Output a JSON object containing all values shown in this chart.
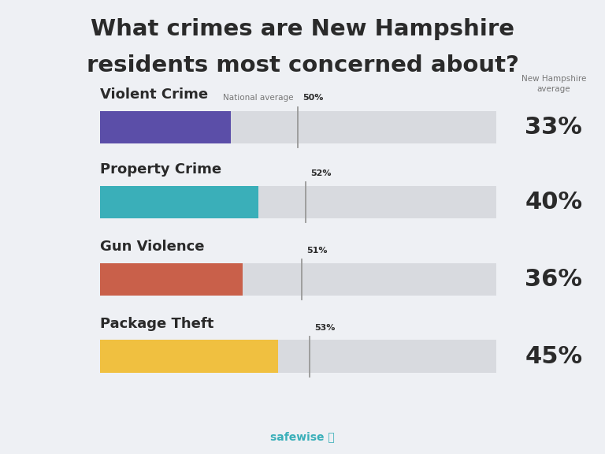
{
  "title_line1": "What crimes are New Hampshire",
  "title_line2": "residents most concerned about?",
  "background_color": "#eef0f4",
  "categories": [
    "Violent Crime",
    "Property Crime",
    "Gun Violence",
    "Package Theft"
  ],
  "state_values": [
    33,
    40,
    36,
    45
  ],
  "national_values": [
    50,
    52,
    51,
    53
  ],
  "bar_colors": [
    "#5b4ea8",
    "#3aafb9",
    "#c9604a",
    "#f0c040"
  ],
  "bar_bg_color": "#d8dadf",
  "max_value": 100,
  "footer_color": "#3aafb9",
  "text_dark": "#2a2a2a",
  "text_gray": "#777777"
}
